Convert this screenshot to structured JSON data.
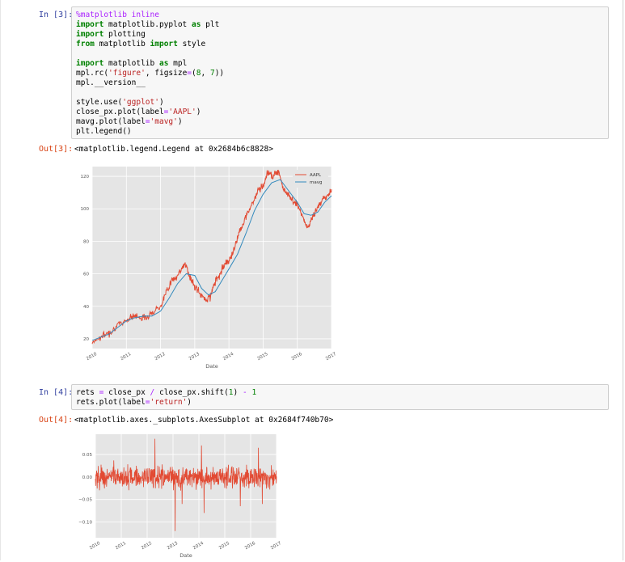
{
  "cells": [
    {
      "in_prompt": "In [3]:",
      "out_prompt": "Out[3]:",
      "code_lines": [
        [
          {
            "t": "%matplotlib inline",
            "c": "mg"
          }
        ],
        [
          {
            "t": "import",
            "c": "kw"
          },
          {
            "t": " matplotlib.pyplot "
          },
          {
            "t": "as",
            "c": "kw"
          },
          {
            "t": " plt"
          }
        ],
        [
          {
            "t": "import",
            "c": "kw"
          },
          {
            "t": " plotting"
          }
        ],
        [
          {
            "t": "from",
            "c": "kw"
          },
          {
            "t": " matplotlib "
          },
          {
            "t": "import",
            "c": "kw"
          },
          {
            "t": " style"
          }
        ],
        [
          {
            "t": ""
          }
        ],
        [
          {
            "t": "import",
            "c": "kw"
          },
          {
            "t": " matplotlib "
          },
          {
            "t": "as",
            "c": "kw"
          },
          {
            "t": " mpl"
          }
        ],
        [
          {
            "t": "mpl.rc("
          },
          {
            "t": "'figure'",
            "c": "st"
          },
          {
            "t": ", figsize"
          },
          {
            "t": "=",
            "c": "op"
          },
          {
            "t": "("
          },
          {
            "t": "8",
            "c": "nm"
          },
          {
            "t": ", "
          },
          {
            "t": "7",
            "c": "nm"
          },
          {
            "t": "))"
          }
        ],
        [
          {
            "t": "mpl.__version__"
          }
        ],
        [
          {
            "t": ""
          }
        ],
        [
          {
            "t": "style.use("
          },
          {
            "t": "'ggplot'",
            "c": "st"
          },
          {
            "t": ")"
          }
        ],
        [
          {
            "t": "close_px.plot(label"
          },
          {
            "t": "=",
            "c": "op"
          },
          {
            "t": "'AAPL'",
            "c": "st"
          },
          {
            "t": ")"
          }
        ],
        [
          {
            "t": "mavg.plot(label"
          },
          {
            "t": "=",
            "c": "op"
          },
          {
            "t": "'mavg'",
            "c": "st"
          },
          {
            "t": ")"
          }
        ],
        [
          {
            "t": "plt.legend()"
          }
        ]
      ],
      "output_text": "<matplotlib.legend.Legend at 0x2684b6c8828>"
    },
    {
      "in_prompt": "In [4]:",
      "out_prompt": "Out[4]:",
      "code_lines": [
        [
          {
            "t": "rets "
          },
          {
            "t": "=",
            "c": "op"
          },
          {
            "t": " close_px "
          },
          {
            "t": "/",
            "c": "op"
          },
          {
            "t": " close_px.shift("
          },
          {
            "t": "1",
            "c": "nm"
          },
          {
            "t": ") "
          },
          {
            "t": "-",
            "c": "op"
          },
          {
            "t": " "
          },
          {
            "t": "1",
            "c": "nm"
          }
        ],
        [
          {
            "t": "rets.plot(label"
          },
          {
            "t": "=",
            "c": "op"
          },
          {
            "t": "'return'",
            "c": "st"
          },
          {
            "t": ")"
          }
        ]
      ],
      "output_text": "<matplotlib.axes._subplots.AxesSubplot at 0x2684f740b70>"
    }
  ],
  "chart_data": [
    {
      "type": "line",
      "xlabel": "Date",
      "x_ticks": [
        "2010",
        "2011",
        "2012",
        "2013",
        "2014",
        "2015",
        "2016",
        "2017"
      ],
      "y_ticks": [
        20,
        40,
        60,
        80,
        100,
        120
      ],
      "xlim": [
        2010.0,
        2017.0
      ],
      "ylim": [
        14,
        126
      ],
      "grid": true,
      "legend_position": "top-right",
      "series": [
        {
          "name": "AAPL",
          "color": "#E24A33",
          "x": [
            2010.0,
            2010.25,
            2010.5,
            2010.75,
            2011.0,
            2011.25,
            2011.5,
            2011.75,
            2012.0,
            2012.15,
            2012.3,
            2012.45,
            2012.6,
            2012.72,
            2012.85,
            2013.0,
            2013.15,
            2013.3,
            2013.45,
            2013.6,
            2013.75,
            2013.9,
            2014.0,
            2014.15,
            2014.3,
            2014.5,
            2014.7,
            2014.85,
            2015.0,
            2015.15,
            2015.3,
            2015.45,
            2015.6,
            2015.75,
            2015.9,
            2016.0,
            2016.15,
            2016.3,
            2016.45,
            2016.6,
            2016.75,
            2016.9,
            2017.0
          ],
          "y": [
            18,
            21,
            24,
            28,
            32,
            34,
            33,
            36,
            40,
            48,
            55,
            58,
            62,
            67,
            58,
            52,
            48,
            44,
            46,
            55,
            61,
            67,
            68,
            75,
            86,
            95,
            104,
            111,
            114,
            123,
            120,
            124,
            112,
            108,
            104,
            103,
            95,
            88,
            95,
            101,
            106,
            108,
            112
          ]
        },
        {
          "name": "mavg",
          "color": "#348ABD",
          "x": [
            2010.0,
            2010.25,
            2010.5,
            2010.75,
            2011.0,
            2011.25,
            2011.5,
            2011.75,
            2012.0,
            2012.25,
            2012.5,
            2012.75,
            2013.0,
            2013.2,
            2013.4,
            2013.6,
            2013.8,
            2014.0,
            2014.25,
            2014.5,
            2014.75,
            2015.0,
            2015.25,
            2015.5,
            2015.75,
            2016.0,
            2016.2,
            2016.4,
            2016.6,
            2016.8,
            2017.0
          ],
          "y": [
            19,
            21,
            23,
            27,
            31,
            33,
            34,
            34,
            37,
            45,
            54,
            60,
            59,
            51,
            47,
            49,
            56,
            63,
            72,
            85,
            99,
            109,
            116,
            118,
            111,
            104,
            97,
            96,
            98,
            104,
            108
          ]
        }
      ]
    },
    {
      "type": "line",
      "xlabel": "Date",
      "x_ticks": [
        "2010",
        "2011",
        "2012",
        "2013",
        "2014",
        "2015",
        "2016",
        "2017"
      ],
      "y_ticks": [
        -0.1,
        -0.05,
        0.0,
        0.05
      ],
      "y_tick_labels": [
        "−0.10",
        "−0.05",
        "0.00",
        "0.05"
      ],
      "xlim": [
        2010.0,
        2017.0
      ],
      "ylim": [
        -0.135,
        0.095
      ],
      "grid": true,
      "series": [
        {
          "color": "#E24A33",
          "approx_std": 0.017,
          "spikes": [
            {
              "x": 2012.3,
              "y": 0.085
            },
            {
              "x": 2013.08,
              "y": -0.12
            },
            {
              "x": 2013.35,
              "y": -0.06
            },
            {
              "x": 2014.1,
              "y": 0.07
            },
            {
              "x": 2014.2,
              "y": -0.08
            },
            {
              "x": 2015.6,
              "y": -0.065
            },
            {
              "x": 2016.3,
              "y": 0.065
            },
            {
              "x": 2016.45,
              "y": -0.06
            }
          ]
        }
      ]
    }
  ]
}
